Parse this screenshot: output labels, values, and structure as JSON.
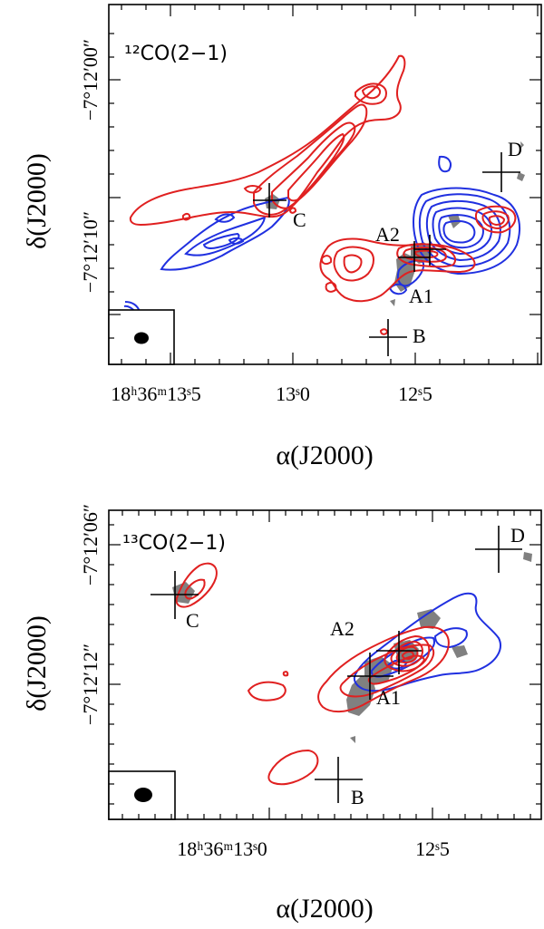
{
  "panels": [
    {
      "molecule_label": "¹²CO(2−1)",
      "ra_ticks": [
        "18ʰ36ᵐ13ˢ5",
        "13ˢ0",
        "12ˢ5"
      ],
      "dec_ticks": [
        "−7°12′00″",
        "−7°12′10″"
      ],
      "x_title": "α(J2000)",
      "y_title": "δ(J2000)",
      "sources": [
        {
          "name": "C"
        },
        {
          "name": "A2"
        },
        {
          "name": "A1"
        },
        {
          "name": "B"
        },
        {
          "name": "D"
        }
      ]
    },
    {
      "molecule_label": "¹³CO(2−1)",
      "ra_ticks": [
        "18ʰ36ᵐ13ˢ0",
        "12ˢ5"
      ],
      "dec_ticks": [
        "−7°12′06″",
        "−7°12′12″"
      ],
      "x_title": "α(J2000)",
      "y_title": "δ(J2000)",
      "sources": [
        {
          "name": "C"
        },
        {
          "name": "A2"
        },
        {
          "name": "A1"
        },
        {
          "name": "B"
        },
        {
          "name": "D"
        }
      ]
    }
  ],
  "colors": {
    "redshifted": "#e02020",
    "blueshifted": "#2030e0",
    "continuum": "#808080"
  },
  "chart_data": [
    {
      "type": "contour",
      "title": "¹²CO(2−1)",
      "xlabel": "α(J2000)",
      "ylabel": "δ(J2000)",
      "series": [
        {
          "name": "redshifted",
          "color": "#e02020"
        },
        {
          "name": "blueshifted",
          "color": "#2030e0"
        },
        {
          "name": "continuum",
          "color": "#808080"
        }
      ]
    },
    {
      "type": "contour",
      "title": "¹³CO(2−1)",
      "xlabel": "α(J2000)",
      "ylabel": "δ(J2000)",
      "series": [
        {
          "name": "redshifted",
          "color": "#e02020"
        },
        {
          "name": "blueshifted",
          "color": "#2030e0"
        },
        {
          "name": "continuum",
          "color": "#808080"
        }
      ]
    }
  ]
}
